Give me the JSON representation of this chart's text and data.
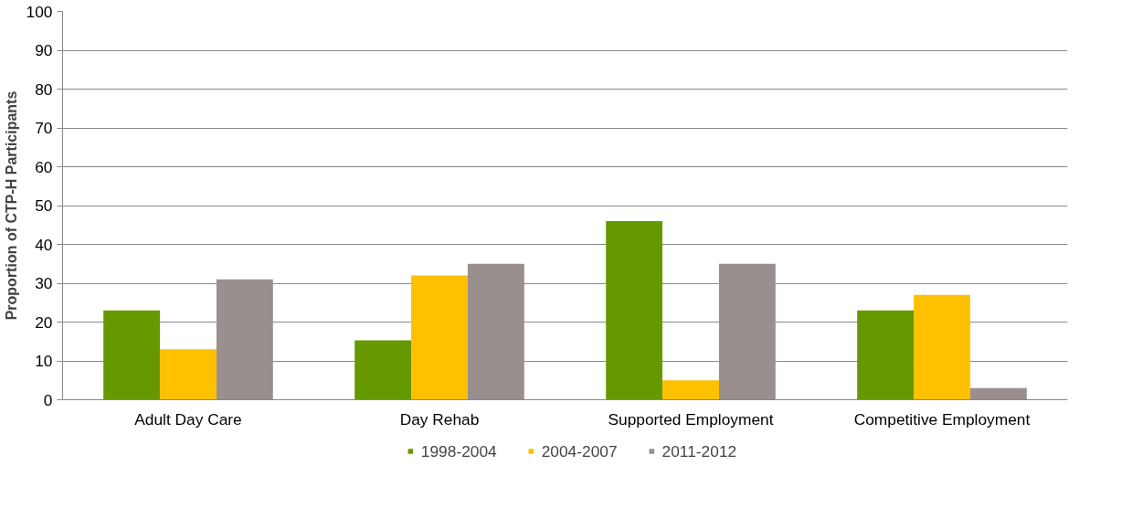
{
  "chart_data": {
    "type": "bar",
    "ylabel": "Proportion of CTP-H Participants",
    "categories": [
      "Adult Day Care",
      "Day Rehab",
      "Supported Employment",
      "Competitive Employment"
    ],
    "series": [
      {
        "name": "1998-2004",
        "color": "#669900",
        "values": [
          23,
          15.3,
          46,
          23
        ]
      },
      {
        "name": "2004-2007",
        "color": "#ffc000",
        "values": [
          13,
          32,
          5,
          27
        ]
      },
      {
        "name": "2011-2012",
        "color": "#998f8f",
        "values": [
          31,
          35,
          35,
          3
        ]
      }
    ],
    "ylim": [
      0,
      100
    ],
    "yticks": [
      0,
      10,
      20,
      30,
      40,
      50,
      60,
      70,
      80,
      90,
      100
    ],
    "grid": "y",
    "legend": "bottom"
  }
}
